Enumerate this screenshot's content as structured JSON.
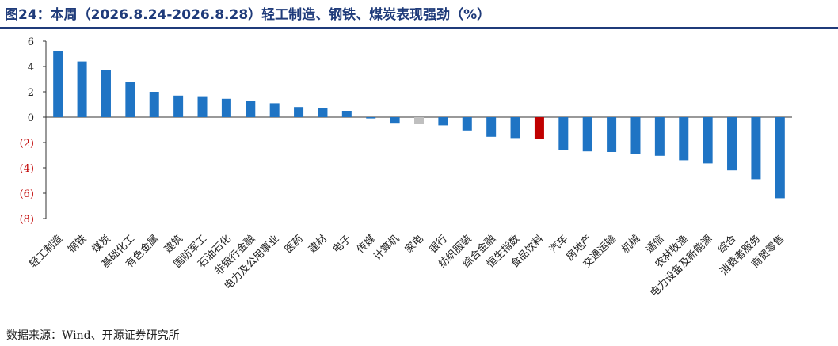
{
  "header": {
    "title": "图24：本周（2026.8.24-2026.8.28）轻工制造、钢铁、煤炭表现强劲（%）"
  },
  "footer": {
    "source": "数据来源：Wind、开源证券研究所"
  },
  "colors": {
    "positive": "#1f74c4",
    "highlight_red": "#c00000",
    "highlight_gray": "#bfbfbf",
    "negative_tick_label": "#c00000",
    "title": "#1f3b7a"
  },
  "chart_data": {
    "type": "bar",
    "title": "",
    "xlabel": "",
    "ylabel": "",
    "ylim": [
      -8,
      6
    ],
    "yticks": [
      6,
      4,
      2,
      0,
      -2,
      -4,
      -6,
      -8
    ],
    "ytick_labels": [
      "6",
      "4",
      "2",
      "0",
      "(2)",
      "(4)",
      "(6)",
      "(8)"
    ],
    "categories": [
      "轻工制造",
      "钢铁",
      "煤炭",
      "基础化工",
      "有色金属",
      "建筑",
      "国防军工",
      "石油石化",
      "非银行金融",
      "电力及公用事业",
      "医药",
      "建材",
      "电子",
      "传媒",
      "计算机",
      "家电",
      "银行",
      "纺织服装",
      "综合金融",
      "恒生指数",
      "食品饮料",
      "汽车",
      "房地产",
      "交通运输",
      "机械",
      "通信",
      "农林牧渔",
      "电力设备及新能源",
      "综合",
      "消费者服务",
      "商贸零售"
    ],
    "values": [
      5.25,
      4.4,
      3.75,
      2.75,
      2.0,
      1.7,
      1.65,
      1.45,
      1.25,
      1.1,
      0.8,
      0.7,
      0.5,
      -0.1,
      -0.45,
      -0.55,
      -0.65,
      -1.05,
      -1.55,
      -1.65,
      -1.75,
      -2.6,
      -2.7,
      -2.75,
      -2.9,
      -3.05,
      -3.4,
      -3.65,
      -4.2,
      -4.9,
      -6.4
    ],
    "bar_colors": [
      "#1f74c4",
      "#1f74c4",
      "#1f74c4",
      "#1f74c4",
      "#1f74c4",
      "#1f74c4",
      "#1f74c4",
      "#1f74c4",
      "#1f74c4",
      "#1f74c4",
      "#1f74c4",
      "#1f74c4",
      "#1f74c4",
      "#1f74c4",
      "#1f74c4",
      "#bfbfbf",
      "#1f74c4",
      "#1f74c4",
      "#1f74c4",
      "#1f74c4",
      "#c00000",
      "#1f74c4",
      "#1f74c4",
      "#1f74c4",
      "#1f74c4",
      "#1f74c4",
      "#1f74c4",
      "#1f74c4",
      "#1f74c4",
      "#1f74c4",
      "#1f74c4"
    ],
    "grid": false,
    "legend": "none"
  }
}
